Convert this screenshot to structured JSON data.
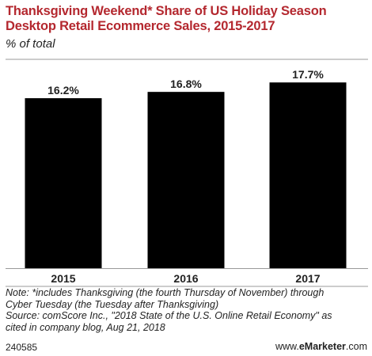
{
  "header": {
    "title_lines": [
      "Thanksgiving Weekend* Share of US Holiday Season",
      "Desktop Retail Ecommerce Sales, 2015-2017"
    ],
    "subtitle": "% of total"
  },
  "chart_data": {
    "type": "bar",
    "categories": [
      "2015",
      "2016",
      "2017"
    ],
    "values": [
      16.2,
      16.8,
      17.7
    ],
    "value_labels": [
      "16.2%",
      "16.8%",
      "17.7%"
    ],
    "title": "Thanksgiving Weekend* Share of US Holiday Season Desktop Retail Ecommerce Sales, 2015-2017",
    "subtitle": "% of total",
    "ylim": [
      0,
      19.3
    ],
    "grid": false,
    "legend": "none",
    "colors": {
      "bar": "#000000",
      "axis": "#999999",
      "title": "#b4282f"
    }
  },
  "footer": {
    "note_lines": [
      "Note: *includes Thanksgiving (the fourth Thursday of November) through",
      "Cyber Tuesday (the Tuesday after Thanksgiving)",
      "Source: comScore Inc., \"2018 State of the U.S. Online Retail Economy\" as",
      "cited in company blog, Aug 21, 2018"
    ],
    "chart_id": "240585",
    "brand_prefix": "www.",
    "brand_name": "eMarketer",
    "brand_suffix": ".com"
  }
}
